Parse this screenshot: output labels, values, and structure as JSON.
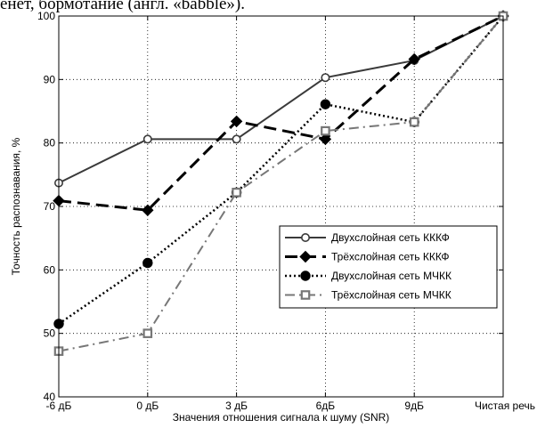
{
  "caption_fragment": "енет, бормотание (англ. «babble»).",
  "chart_data": {
    "type": "line",
    "categories": [
      "-6 дБ",
      "0 дБ",
      "3 дБ",
      "6дБ",
      "9дБ",
      "Чистая речь"
    ],
    "xlabel": "Значения отношения сигнала к шуму (SNR)",
    "ylabel": "Точность распознавания, %",
    "ylim": [
      40,
      100
    ],
    "yticks": [
      "40",
      "50",
      "60",
      "70",
      "80",
      "90",
      "100"
    ],
    "grid": true,
    "legend_position": "center-right",
    "series": [
      {
        "name": "Двухслойная сеть КККФ",
        "values": [
          73.7,
          80.6,
          80.6,
          90.3,
          93.0,
          100
        ],
        "color": "#3a3a3a",
        "style": "solid",
        "marker": "open-circle"
      },
      {
        "name": "Трёхслойная сеть КККФ",
        "values": [
          70.9,
          69.4,
          83.4,
          80.6,
          93.2,
          100
        ],
        "color": "#000000",
        "style": "dashed",
        "marker": "diamond"
      },
      {
        "name": "Двухслойная сеть МЧКК",
        "values": [
          51.5,
          61.1,
          72.2,
          86.1,
          83.3,
          100
        ],
        "color": "#000000",
        "style": "dotted",
        "marker": "filled-circle"
      },
      {
        "name": "Трёхслойная сеть МЧКК",
        "values": [
          47.2,
          50.0,
          72.2,
          81.9,
          83.3,
          100
        ],
        "color": "#777777",
        "style": "dashdot",
        "marker": "open-square"
      }
    ]
  }
}
